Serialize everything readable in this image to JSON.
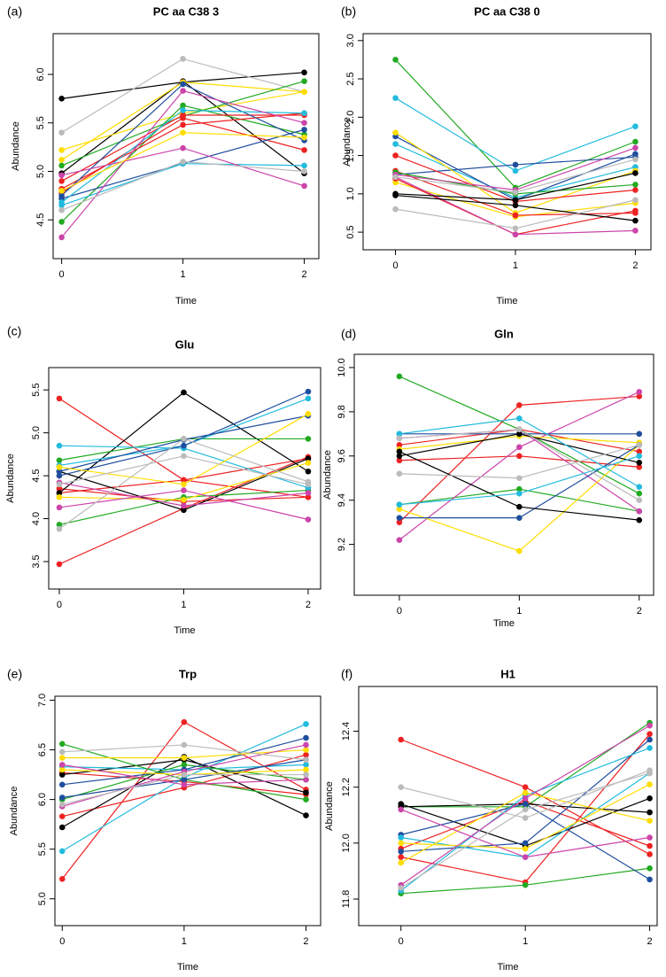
{
  "chart_data": [
    {
      "type": "line",
      "label": "(a)",
      "title": "PC aa C38 3",
      "xlabel": "Time",
      "ylabel": "Abundance",
      "x": [
        0,
        1,
        2
      ],
      "xlim": [
        -0.07,
        2.12
      ],
      "xticks": [
        0,
        1,
        2
      ],
      "ylim": [
        4.1,
        6.42
      ],
      "yticks": [
        4.5,
        {
          "value": 5,
          "label": "5.0"
        },
        5.5,
        {
          "value": 6,
          "label": "6.0"
        }
      ],
      "series": [
        {
          "color": "#000000",
          "values": [
            5.75,
            5.92,
            6.02
          ]
        },
        {
          "color": "#000000",
          "values": [
            4.98,
            5.93,
            4.98
          ]
        },
        {
          "color": "#bbbbbb",
          "values": [
            5.4,
            6.16,
            5.82
          ]
        },
        {
          "color": "#ffdd00",
          "values": [
            5.22,
            5.6,
            5.82
          ]
        },
        {
          "color": "#ffdd00",
          "values": [
            5.12,
            5.92,
            5.82
          ]
        },
        {
          "color": "#22aa22",
          "values": [
            5.06,
            5.57,
            5.93
          ]
        },
        {
          "color": "#22aa22",
          "values": [
            4.48,
            5.68,
            5.38
          ]
        },
        {
          "color": "#ee2222",
          "values": [
            4.9,
            5.58,
            5.58
          ]
        },
        {
          "color": "#ee2222",
          "values": [
            4.82,
            5.48,
            5.6
          ]
        },
        {
          "color": "#ee2222",
          "values": [
            4.78,
            5.55,
            5.22
          ]
        },
        {
          "color": "#1f4e9e",
          "values": [
            4.75,
            5.9,
            5.32
          ]
        },
        {
          "color": "#1f4e9e",
          "values": [
            4.72,
            5.08,
            5.43
          ]
        },
        {
          "color": "#22bbdd",
          "values": [
            4.68,
            5.63,
            5.6
          ]
        },
        {
          "color": "#22bbdd",
          "values": [
            4.65,
            5.08,
            5.06
          ]
        },
        {
          "color": "#cc44aa",
          "values": [
            4.96,
            5.24,
            4.85
          ]
        },
        {
          "color": "#cc44aa",
          "values": [
            4.32,
            5.83,
            5.5
          ]
        },
        {
          "color": "#bbbbbb",
          "values": [
            4.6,
            5.1,
            5.0
          ]
        },
        {
          "color": "#ffdd00",
          "values": [
            4.8,
            5.4,
            5.35
          ]
        }
      ]
    },
    {
      "type": "line",
      "label": "(b)",
      "title": "PC aa C38 0",
      "xlabel": "Time",
      "ylabel": "Abundance",
      "x": [
        0,
        1,
        2
      ],
      "xlim": [
        -0.27,
        2.13
      ],
      "xticks": [
        0,
        1,
        2
      ],
      "ylim": [
        0.27,
        3.09
      ],
      "yticks": [
        0.5,
        {
          "value": 1,
          "label": "1.0"
        },
        1.5,
        {
          "value": 2,
          "label": "2.0"
        },
        2.5,
        {
          "value": 3,
          "label": "3.0"
        }
      ],
      "series": [
        {
          "color": "#22aa22",
          "values": [
            2.75,
            1.08,
            1.68
          ]
        },
        {
          "color": "#22bbdd",
          "values": [
            2.25,
            1.3,
            1.88
          ]
        },
        {
          "color": "#22bbdd",
          "values": [
            1.65,
            0.95,
            1.35
          ]
        },
        {
          "color": "#1f4e9e",
          "values": [
            1.75,
            0.92,
            1.52
          ]
        },
        {
          "color": "#1f4e9e",
          "values": [
            1.25,
            1.38,
            1.48
          ]
        },
        {
          "color": "#ffdd00",
          "values": [
            1.8,
            0.75,
            1.3
          ]
        },
        {
          "color": "#ffdd00",
          "values": [
            1.15,
            0.7,
            0.88
          ]
        },
        {
          "color": "#ee2222",
          "values": [
            1.5,
            0.9,
            1.05
          ]
        },
        {
          "color": "#ee2222",
          "values": [
            1.2,
            0.47,
            0.78
          ]
        },
        {
          "color": "#ee2222",
          "values": [
            1.3,
            0.72,
            0.75
          ]
        },
        {
          "color": "#22aa22",
          "values": [
            1.28,
            1.0,
            1.12
          ]
        },
        {
          "color": "#cc44aa",
          "values": [
            1.25,
            1.05,
            1.6
          ]
        },
        {
          "color": "#cc44aa",
          "values": [
            1.22,
            0.47,
            0.52
          ]
        },
        {
          "color": "#000000",
          "values": [
            1.0,
            0.92,
            1.27
          ]
        },
        {
          "color": "#000000",
          "values": [
            0.98,
            0.85,
            0.65
          ]
        },
        {
          "color": "#bbbbbb",
          "values": [
            0.8,
            0.55,
            0.92
          ]
        },
        {
          "color": "#bbbbbb",
          "values": [
            1.22,
            1.02,
            1.45
          ]
        }
      ]
    },
    {
      "type": "line",
      "label": "(c)",
      "title": "Glu",
      "xlabel": "Time",
      "ylabel": "Abundance",
      "x": [
        0,
        1,
        2
      ],
      "xlim": [
        -0.085,
        2.1
      ],
      "xticks": [
        0,
        1,
        2
      ],
      "ylim": [
        3.18,
        5.76
      ],
      "yticks": [
        3.5,
        {
          "value": 4,
          "label": "4.0"
        },
        4.5,
        {
          "value": 5,
          "label": "5.0"
        },
        5.5
      ],
      "series": [
        {
          "color": "#ee2222",
          "values": [
            5.4,
            4.45,
            4.7
          ]
        },
        {
          "color": "#ee2222",
          "values": [
            3.47,
            4.12,
            4.72
          ]
        },
        {
          "color": "#ee2222",
          "values": [
            4.35,
            4.2,
            4.25
          ]
        },
        {
          "color": "#ee2222",
          "values": [
            4.3,
            4.45,
            4.25
          ]
        },
        {
          "color": "#000000",
          "values": [
            4.3,
            5.47,
            4.55
          ]
        },
        {
          "color": "#000000",
          "values": [
            4.55,
            4.1,
            4.7
          ]
        },
        {
          "color": "#22aa22",
          "values": [
            4.68,
            4.93,
            4.93
          ]
        },
        {
          "color": "#22aa22",
          "values": [
            3.93,
            4.25,
            4.33
          ]
        },
        {
          "color": "#22bbdd",
          "values": [
            4.85,
            4.82,
            4.36
          ]
        },
        {
          "color": "#22bbdd",
          "values": [
            4.62,
            4.85,
            5.4
          ]
        },
        {
          "color": "#1f4e9e",
          "values": [
            4.55,
            4.92,
            5.2
          ]
        },
        {
          "color": "#1f4e9e",
          "values": [
            4.5,
            4.85,
            5.48
          ]
        },
        {
          "color": "#ffdd00",
          "values": [
            4.6,
            4.4,
            5.22
          ]
        },
        {
          "color": "#ffdd00",
          "values": [
            4.25,
            4.22,
            4.65
          ]
        },
        {
          "color": "#cc44aa",
          "values": [
            4.13,
            4.33,
            3.99
          ]
        },
        {
          "color": "#cc44aa",
          "values": [
            4.42,
            4.15,
            4.3
          ]
        },
        {
          "color": "#bbbbbb",
          "values": [
            3.88,
            4.93,
            4.43
          ]
        },
        {
          "color": "#bbbbbb",
          "values": [
            4.4,
            4.73,
            4.4
          ]
        }
      ]
    },
    {
      "type": "line",
      "label": "(d)",
      "title": "Gln",
      "xlabel": "Time",
      "ylabel": "Abundance",
      "x": [
        0,
        1,
        2
      ],
      "xlim": [
        -0.376,
        2.12
      ],
      "xticks": [
        0,
        1,
        2
      ],
      "ylim": [
        8.97,
        10.06
      ],
      "yticks": [
        9.2,
        9.4,
        9.6,
        9.8,
        {
          "value": 10,
          "label": "10.0"
        }
      ],
      "series": [
        {
          "color": "#22aa22",
          "values": [
            9.96,
            9.72,
            9.43
          ]
        },
        {
          "color": "#22aa22",
          "values": [
            9.38,
            9.45,
            9.35
          ]
        },
        {
          "color": "#ee2222",
          "values": [
            9.3,
            9.83,
            9.87
          ]
        },
        {
          "color": "#ee2222",
          "values": [
            9.58,
            9.6,
            9.55
          ]
        },
        {
          "color": "#ee2222",
          "values": [
            9.65,
            9.72,
            9.62
          ]
        },
        {
          "color": "#cc44aa",
          "values": [
            9.22,
            9.64,
            9.89
          ]
        },
        {
          "color": "#cc44aa",
          "values": [
            9.68,
            9.72,
            9.35
          ]
        },
        {
          "color": "#ffdd00",
          "values": [
            9.36,
            9.17,
            9.65
          ]
        },
        {
          "color": "#ffdd00",
          "values": [
            9.63,
            9.69,
            9.66
          ]
        },
        {
          "color": "#1f4e9e",
          "values": [
            9.7,
            9.7,
            9.7
          ]
        },
        {
          "color": "#1f4e9e",
          "values": [
            9.32,
            9.32,
            9.65
          ]
        },
        {
          "color": "#000000",
          "values": [
            9.62,
            9.37,
            9.31
          ]
        },
        {
          "color": "#000000",
          "values": [
            9.6,
            9.7,
            9.57
          ]
        },
        {
          "color": "#22bbdd",
          "values": [
            9.7,
            9.77,
            9.46
          ]
        },
        {
          "color": "#22bbdd",
          "values": [
            9.38,
            9.43,
            9.6
          ]
        },
        {
          "color": "#bbbbbb",
          "values": [
            9.52,
            9.5,
            9.65
          ]
        },
        {
          "color": "#bbbbbb",
          "values": [
            9.68,
            9.72,
            9.4
          ]
        }
      ]
    },
    {
      "type": "line",
      "label": "(e)",
      "title": "Trp",
      "xlabel": "Time",
      "ylabel": "Abundance",
      "x": [
        0,
        1,
        2
      ],
      "xlim": [
        -0.06,
        2.12
      ],
      "xticks": [
        0,
        1,
        2
      ],
      "ylim": [
        4.73,
        7.04
      ],
      "yticks": [
        {
          "value": 5,
          "label": "5.0"
        },
        5.5,
        {
          "value": 6,
          "label": "6.0"
        },
        6.5,
        {
          "value": 7,
          "label": "7.0"
        }
      ],
      "series": [
        {
          "color": "#ee2222",
          "values": [
            5.2,
            6.78,
            6.1
          ]
        },
        {
          "color": "#ee2222",
          "values": [
            5.83,
            6.12,
            6.45
          ]
        },
        {
          "color": "#ee2222",
          "values": [
            6.27,
            6.18,
            6.05
          ]
        },
        {
          "color": "#000000",
          "values": [
            5.72,
            6.43,
            5.84
          ]
        },
        {
          "color": "#000000",
          "values": [
            6.25,
            6.4,
            6.07
          ]
        },
        {
          "color": "#22bbdd",
          "values": [
            5.48,
            6.22,
            6.76
          ]
        },
        {
          "color": "#22bbdd",
          "values": [
            6.33,
            6.3,
            6.35
          ]
        },
        {
          "color": "#22aa22",
          "values": [
            6.56,
            6.2,
            6.0
          ]
        },
        {
          "color": "#22aa22",
          "values": [
            6.0,
            6.35,
            6.2
          ]
        },
        {
          "color": "#1f4e9e",
          "values": [
            6.15,
            6.3,
            6.62
          ]
        },
        {
          "color": "#1f4e9e",
          "values": [
            6.02,
            6.2,
            6.4
          ]
        },
        {
          "color": "#ffdd00",
          "values": [
            6.42,
            6.42,
            6.5
          ]
        },
        {
          "color": "#ffdd00",
          "values": [
            6.3,
            6.25,
            6.3
          ]
        },
        {
          "color": "#cc44aa",
          "values": [
            5.93,
            6.28,
            6.55
          ]
        },
        {
          "color": "#cc44aa",
          "values": [
            6.35,
            6.15,
            6.2
          ]
        },
        {
          "color": "#bbbbbb",
          "values": [
            6.48,
            6.55,
            6.4
          ]
        },
        {
          "color": "#bbbbbb",
          "values": [
            5.95,
            6.25,
            6.25
          ]
        }
      ]
    },
    {
      "type": "line",
      "label": "(f)",
      "title": "H1",
      "xlabel": "Time",
      "ylabel": "Abundance",
      "x": [
        0,
        1,
        2
      ],
      "xlim": [
        -0.34,
        2.06
      ],
      "xticks": [
        0,
        1,
        2
      ],
      "ylim": [
        11.705,
        12.56
      ],
      "yticks": [
        11.8,
        {
          "value": 12,
          "label": "12.0"
        },
        12.2,
        12.4
      ],
      "series": [
        {
          "color": "#ee2222",
          "values": [
            12.37,
            12.2,
            11.96
          ]
        },
        {
          "color": "#ee2222",
          "values": [
            11.95,
            11.86,
            12.39
          ]
        },
        {
          "color": "#ee2222",
          "values": [
            11.98,
            12.15,
            11.99
          ]
        },
        {
          "color": "#22aa22",
          "values": [
            12.13,
            12.13,
            12.43
          ]
        },
        {
          "color": "#22aa22",
          "values": [
            11.82,
            11.85,
            11.91
          ]
        },
        {
          "color": "#000000",
          "values": [
            12.14,
            11.99,
            12.16
          ]
        },
        {
          "color": "#000000",
          "values": [
            12.13,
            12.14,
            12.11
          ]
        },
        {
          "color": "#1f4e9e",
          "values": [
            12.03,
            12.14,
            11.87
          ]
        },
        {
          "color": "#1f4e9e",
          "values": [
            11.97,
            12.0,
            12.37
          ]
        },
        {
          "color": "#22bbdd",
          "values": [
            11.83,
            12.17,
            12.34
          ]
        },
        {
          "color": "#22bbdd",
          "values": [
            12.02,
            11.95,
            12.25
          ]
        },
        {
          "color": "#ffdd00",
          "values": [
            12.0,
            11.98,
            12.21
          ]
        },
        {
          "color": "#ffdd00",
          "values": [
            11.93,
            12.18,
            12.08
          ]
        },
        {
          "color": "#cc44aa",
          "values": [
            11.85,
            12.16,
            12.42
          ]
        },
        {
          "color": "#cc44aa",
          "values": [
            12.12,
            11.95,
            12.02
          ]
        },
        {
          "color": "#bbbbbb",
          "values": [
            12.2,
            12.09,
            12.26
          ]
        },
        {
          "color": "#bbbbbb",
          "values": [
            11.84,
            12.12,
            12.25
          ]
        }
      ]
    }
  ]
}
